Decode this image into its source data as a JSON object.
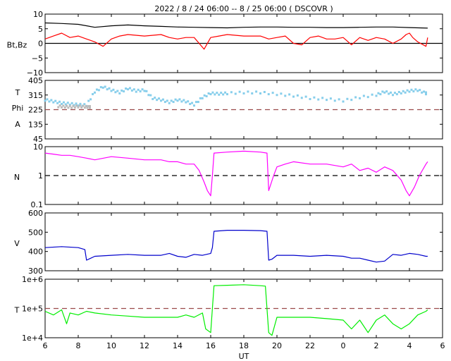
{
  "title": "2022 /  8 / 24   06:00 --  8 / 25   06:00 ( DSCOVR )",
  "x_axis": {
    "label": "UT",
    "ticks": [
      "6",
      "8",
      "10",
      "12",
      "14",
      "16",
      "18",
      "20",
      "22",
      "0",
      "2",
      "4",
      "6"
    ]
  },
  "chart_data": [
    {
      "type": "line",
      "id": "mag",
      "ylabel": "Bt,Bz",
      "ylim": [
        -10,
        10
      ],
      "yticks": [
        "10",
        "5",
        "0",
        "−5",
        "−10"
      ],
      "reference": {
        "value": 0,
        "style": "solid",
        "color": "#000000"
      },
      "series": [
        {
          "key": "Bt",
          "color": "#000000",
          "x": [
            6,
            7,
            8,
            9,
            10,
            11,
            12,
            13,
            14,
            15,
            16,
            17,
            18,
            19,
            20,
            21,
            22,
            23,
            24,
            25,
            26,
            27,
            28,
            29.1
          ],
          "y": [
            7,
            6.8,
            6.5,
            5.5,
            6,
            6.3,
            6,
            5.8,
            5.6,
            5.5,
            5.4,
            5.3,
            5.5,
            5.6,
            5.6,
            5.5,
            5.5,
            5.4,
            5.4,
            5.5,
            5.6,
            5.6,
            5.4,
            5.2
          ]
        },
        {
          "key": "Bz",
          "color": "#ff0000",
          "x": [
            6,
            6.5,
            7,
            7.5,
            8,
            8.5,
            9,
            9.5,
            10,
            10.5,
            11,
            12,
            13,
            13.5,
            14,
            14.5,
            15,
            15.3,
            15.6,
            16,
            16.5,
            17,
            18,
            19,
            19.5,
            20,
            20.5,
            21,
            21.5,
            22,
            22.5,
            23,
            23.5,
            24,
            24.5,
            25,
            25.5,
            26,
            26.5,
            27,
            27.5,
            27.8,
            28,
            28.2,
            28.5,
            29,
            29.1
          ],
          "y": [
            1.5,
            2.5,
            3.5,
            2,
            2.5,
            1.5,
            0.5,
            -1,
            1.5,
            2.5,
            3,
            2.5,
            3,
            2,
            1.5,
            2,
            2,
            0,
            -2,
            2,
            2.5,
            3,
            2.5,
            2.5,
            1.5,
            2,
            2.5,
            0,
            -0.5,
            2,
            2.5,
            1.5,
            1.5,
            2,
            -0.5,
            2,
            1,
            2,
            1.5,
            0,
            1.5,
            3,
            3.5,
            2,
            0.5,
            -1,
            2
          ]
        }
      ]
    },
    {
      "type": "scatter",
      "id": "temp_phi",
      "ylabel_lines": [
        "T",
        "Phi",
        "A"
      ],
      "ylim": [
        45,
        405
      ],
      "yticks": [
        "405",
        "315",
        "225",
        "135",
        "45"
      ],
      "reference": {
        "value": 225,
        "style": "dashed",
        "color": "#9b4a4a"
      },
      "series": [
        {
          "key": "Phi",
          "color": "#87ceeb",
          "x": [
            6,
            6.5,
            7,
            7.5,
            8,
            8.5,
            9,
            9.5,
            10,
            10.5,
            11,
            11.5,
            12,
            12.5,
            13,
            13.5,
            14,
            14.5,
            15,
            15.5,
            16,
            16.5,
            17,
            18,
            19,
            20,
            21,
            22,
            23,
            24,
            25,
            26,
            26.5,
            27,
            27.5,
            28,
            28.5,
            29
          ],
          "y": [
            285,
            275,
            265,
            260,
            255,
            252,
            335,
            365,
            345,
            330,
            355,
            340,
            345,
            295,
            285,
            270,
            285,
            275,
            255,
            300,
            325,
            322,
            325,
            330,
            330,
            320,
            310,
            295,
            290,
            280,
            300,
            315,
            335,
            320,
            330,
            340,
            345,
            325
          ]
        },
        {
          "key": "Phi-low-density",
          "color": "#bbbbbb",
          "x": [
            6.8,
            7.2,
            7.6,
            8.0,
            8.4,
            8.7
          ],
          "y": [
            245,
            243,
            241,
            244,
            242,
            240
          ]
        }
      ]
    },
    {
      "type": "line",
      "id": "density",
      "ylabel": "N",
      "scale": "log",
      "ylim": [
        0.1,
        10
      ],
      "yticks": [
        "10",
        "1",
        "0.1"
      ],
      "reference": {
        "value": 1,
        "style": "dashed",
        "color": "#000000"
      },
      "series": [
        {
          "key": "N",
          "color": "#ff00ff",
          "x": [
            6,
            6.5,
            7,
            7.5,
            8,
            8.5,
            9,
            10,
            11,
            12,
            13,
            13.5,
            14,
            14.5,
            15,
            15.3,
            15.6,
            15.8,
            16,
            16.1,
            16.2,
            17,
            18,
            19,
            19.4,
            19.5,
            19.8,
            20,
            20.5,
            21,
            22,
            23,
            24,
            24.5,
            25,
            25.5,
            26,
            26.5,
            27,
            27.5,
            27.8,
            28,
            28.3,
            28.6,
            29,
            29.1
          ],
          "y": [
            6,
            5.5,
            5,
            5,
            4.5,
            4,
            3.5,
            4.5,
            4,
            3.5,
            3.5,
            3,
            3,
            2.5,
            2.5,
            1.5,
            0.6,
            0.3,
            0.2,
            1,
            6,
            6.5,
            7,
            6.5,
            6,
            0.3,
            1,
            2,
            2.5,
            3,
            2.5,
            2.5,
            2,
            2.5,
            1.5,
            1.8,
            1.3,
            2,
            1.5,
            0.7,
            0.3,
            0.2,
            0.4,
            1,
            2.5,
            3
          ]
        }
      ]
    },
    {
      "type": "line",
      "id": "velocity",
      "ylabel": "V",
      "ylim": [
        300,
        600
      ],
      "yticks": [
        "600",
        "500",
        "400",
        "300"
      ],
      "series": [
        {
          "key": "V",
          "color": "#0000cc",
          "x": [
            6,
            7,
            8,
            8.4,
            8.5,
            9,
            10,
            11,
            12,
            13,
            13.5,
            14,
            14.5,
            15,
            15.5,
            16,
            16.1,
            16.2,
            17,
            18,
            19,
            19.4,
            19.5,
            19.7,
            20,
            21,
            22,
            23,
            24,
            24.5,
            25,
            25.5,
            26,
            26.5,
            27,
            27.5,
            28,
            28.5,
            29,
            29.1
          ],
          "y": [
            420,
            425,
            420,
            410,
            355,
            375,
            380,
            385,
            380,
            380,
            390,
            375,
            370,
            385,
            380,
            390,
            420,
            505,
            510,
            510,
            508,
            505,
            355,
            360,
            380,
            380,
            375,
            380,
            375,
            365,
            365,
            355,
            345,
            350,
            385,
            380,
            390,
            385,
            375,
            375
          ]
        }
      ]
    },
    {
      "type": "line",
      "id": "temperature",
      "ylabel": "T",
      "scale": "log",
      "ylim": [
        10000,
        1000000
      ],
      "yticks": [
        "1e+6",
        "1e+5",
        "1e+4"
      ],
      "reference": {
        "value": 100000,
        "style": "dashed",
        "color": "#9b4a4a"
      },
      "series": [
        {
          "key": "T",
          "color": "#00ee00",
          "x": [
            6,
            6.5,
            7,
            7.3,
            7.5,
            8,
            8.5,
            9,
            10,
            11,
            12,
            13,
            14,
            14.5,
            15,
            15.5,
            15.7,
            16,
            16.1,
            16.2,
            17,
            18,
            19,
            19.3,
            19.5,
            19.7,
            20,
            21,
            22,
            23,
            24,
            24.5,
            25,
            25.5,
            26,
            26.5,
            27,
            27.5,
            28,
            28.5,
            29,
            29.1
          ],
          "y": [
            80000,
            60000,
            90000,
            30000,
            70000,
            60000,
            80000,
            70000,
            60000,
            55000,
            50000,
            50000,
            50000,
            60000,
            50000,
            70000,
            20000,
            15000,
            100000,
            600000,
            620000,
            650000,
            600000,
            580000,
            15000,
            12000,
            50000,
            50000,
            50000,
            45000,
            40000,
            20000,
            40000,
            15000,
            40000,
            60000,
            30000,
            20000,
            30000,
            60000,
            80000,
            90000
          ]
        }
      ]
    }
  ]
}
